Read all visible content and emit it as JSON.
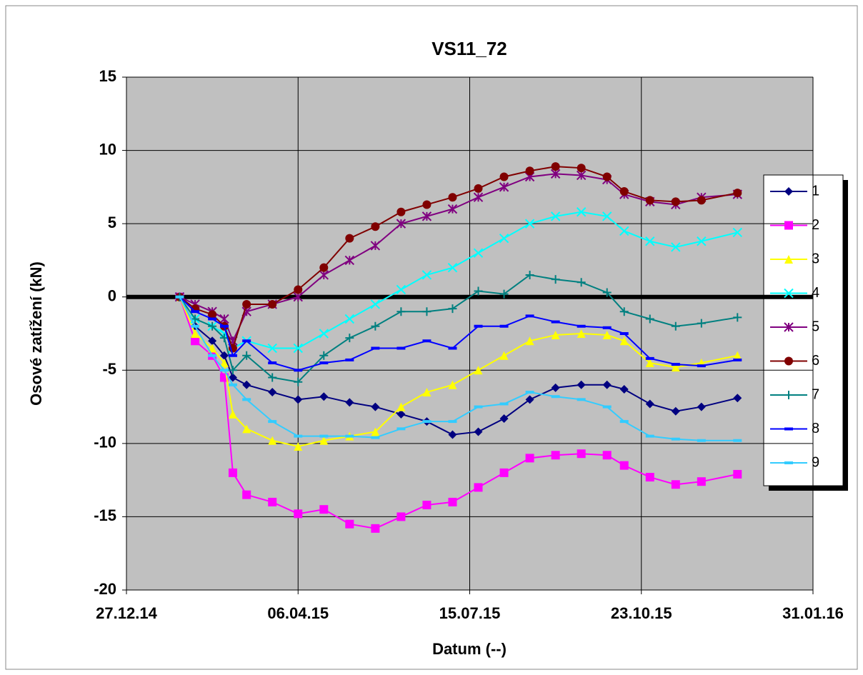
{
  "chart_data": {
    "type": "line",
    "title": "VS11_72",
    "x_label": "Datum (--)",
    "y_label": "Osové zatížení (kN)",
    "x": [
      "2015-01-27",
      "2015-02-05",
      "2015-02-15",
      "2015-02-22",
      "2015-02-27",
      "2015-03-07",
      "2015-03-22",
      "2015-04-06",
      "2015-04-21",
      "2015-05-06",
      "2015-05-21",
      "2015-06-05",
      "2015-06-20",
      "2015-07-05",
      "2015-07-20",
      "2015-08-04",
      "2015-08-19",
      "2015-09-03",
      "2015-09-18",
      "2015-10-03",
      "2015-10-13",
      "2015-10-28",
      "2015-11-12",
      "2015-11-27",
      "2015-12-18"
    ],
    "xlim": [
      "2014-12-27",
      "2016-01-31"
    ],
    "xticks": [
      {
        "value": "2014-12-27",
        "label": "27.12.14"
      },
      {
        "value": "2015-04-06",
        "label": "06.04.15"
      },
      {
        "value": "2015-07-15",
        "label": "15.07.15"
      },
      {
        "value": "2015-10-23",
        "label": "23.10.15"
      },
      {
        "value": "2016-01-31",
        "label": "31.01.16"
      }
    ],
    "ylim": [
      -20,
      15
    ],
    "yticks": [
      -20,
      -15,
      -10,
      -5,
      0,
      5,
      10,
      15
    ],
    "grid": true,
    "legend": "right",
    "series": [
      {
        "name": "1",
        "color": "#000080",
        "marker": "diamond",
        "values": [
          0,
          -2,
          -3,
          -4,
          -5.5,
          -6,
          -6.5,
          -7,
          -6.8,
          -7.2,
          -7.5,
          -8,
          -8.5,
          -9.4,
          -9.2,
          -8.3,
          -7,
          -6.2,
          -6,
          -6,
          -6.3,
          -7.3,
          -7.8,
          -7.5,
          -6.9
        ]
      },
      {
        "name": "2",
        "color": "#ff00ff",
        "marker": "square",
        "values": [
          0,
          -3,
          -4,
          -5.5,
          -12,
          -13.5,
          -14,
          -14.8,
          -14.5,
          -15.5,
          -15.8,
          -15,
          -14.2,
          -14,
          -13,
          -12,
          -11,
          -10.8,
          -10.7,
          -10.8,
          -11.5,
          -12.3,
          -12.8,
          -12.6,
          -12.1
        ]
      },
      {
        "name": "3",
        "color": "#ffff00",
        "marker": "triangle",
        "values": [
          0,
          -2.5,
          -3.5,
          -4.5,
          -8,
          -9,
          -9.8,
          -10.2,
          -9.8,
          -9.5,
          -9.2,
          -7.5,
          -6.5,
          -6,
          -5,
          -4,
          -3,
          -2.6,
          -2.5,
          -2.6,
          -3,
          -4.5,
          -4.8,
          -4.5,
          -4
        ]
      },
      {
        "name": "4",
        "color": "#00ffff",
        "marker": "x",
        "values": [
          0,
          -1.5,
          -2,
          -2.5,
          -3.5,
          -3,
          -3.5,
          -3.5,
          -2.5,
          -1.5,
          -0.5,
          0.5,
          1.5,
          2,
          3,
          4,
          5,
          5.5,
          5.8,
          5.5,
          4.5,
          3.8,
          3.4,
          3.8,
          4.4
        ]
      },
      {
        "name": "5",
        "color": "#800080",
        "marker": "star",
        "values": [
          0,
          -0.5,
          -1,
          -1.5,
          -3,
          -1,
          -0.5,
          0,
          1.5,
          2.5,
          3.5,
          5,
          5.5,
          6,
          6.8,
          7.5,
          8.2,
          8.4,
          8.3,
          8,
          7,
          6.5,
          6.3,
          6.8,
          7
        ]
      },
      {
        "name": "6",
        "color": "#800000",
        "marker": "circle",
        "values": [
          0,
          -0.8,
          -1.2,
          -2,
          -3.5,
          -0.5,
          -0.5,
          0.5,
          2,
          4,
          4.8,
          5.8,
          6.3,
          6.8,
          7.4,
          8.2,
          8.6,
          8.9,
          8.8,
          8.2,
          7.2,
          6.6,
          6.5,
          6.6,
          7.1
        ]
      },
      {
        "name": "7",
        "color": "#008080",
        "marker": "plus",
        "values": [
          0,
          -1.5,
          -2,
          -2.8,
          -5,
          -4,
          -5.5,
          -5.8,
          -4,
          -2.8,
          -2,
          -1,
          -1,
          -0.8,
          0.4,
          0.2,
          1.5,
          1.2,
          1,
          0.3,
          -1,
          -1.5,
          -2,
          -1.8,
          -1.4
        ]
      },
      {
        "name": "8",
        "color": "#0000ff",
        "marker": "dash",
        "values": [
          0,
          -1,
          -1.5,
          -2,
          -4,
          -3,
          -4.5,
          -5,
          -4.5,
          -4.3,
          -3.5,
          -3.5,
          -3,
          -3.5,
          -2,
          -2,
          -1.3,
          -1.7,
          -2,
          -2.1,
          -2.5,
          -4.2,
          -4.6,
          -4.7,
          -4.3
        ]
      },
      {
        "name": "9",
        "color": "#33ccff",
        "marker": "dash",
        "values": [
          0,
          -2,
          -4,
          -5,
          -6,
          -7,
          -8.5,
          -9.5,
          -9.5,
          -9.5,
          -9.6,
          -9,
          -8.5,
          -8.5,
          -7.5,
          -7.3,
          -6.5,
          -6.8,
          -7,
          -7.5,
          -8.5,
          -9.5,
          -9.7,
          -9.8,
          -9.8
        ]
      }
    ]
  }
}
